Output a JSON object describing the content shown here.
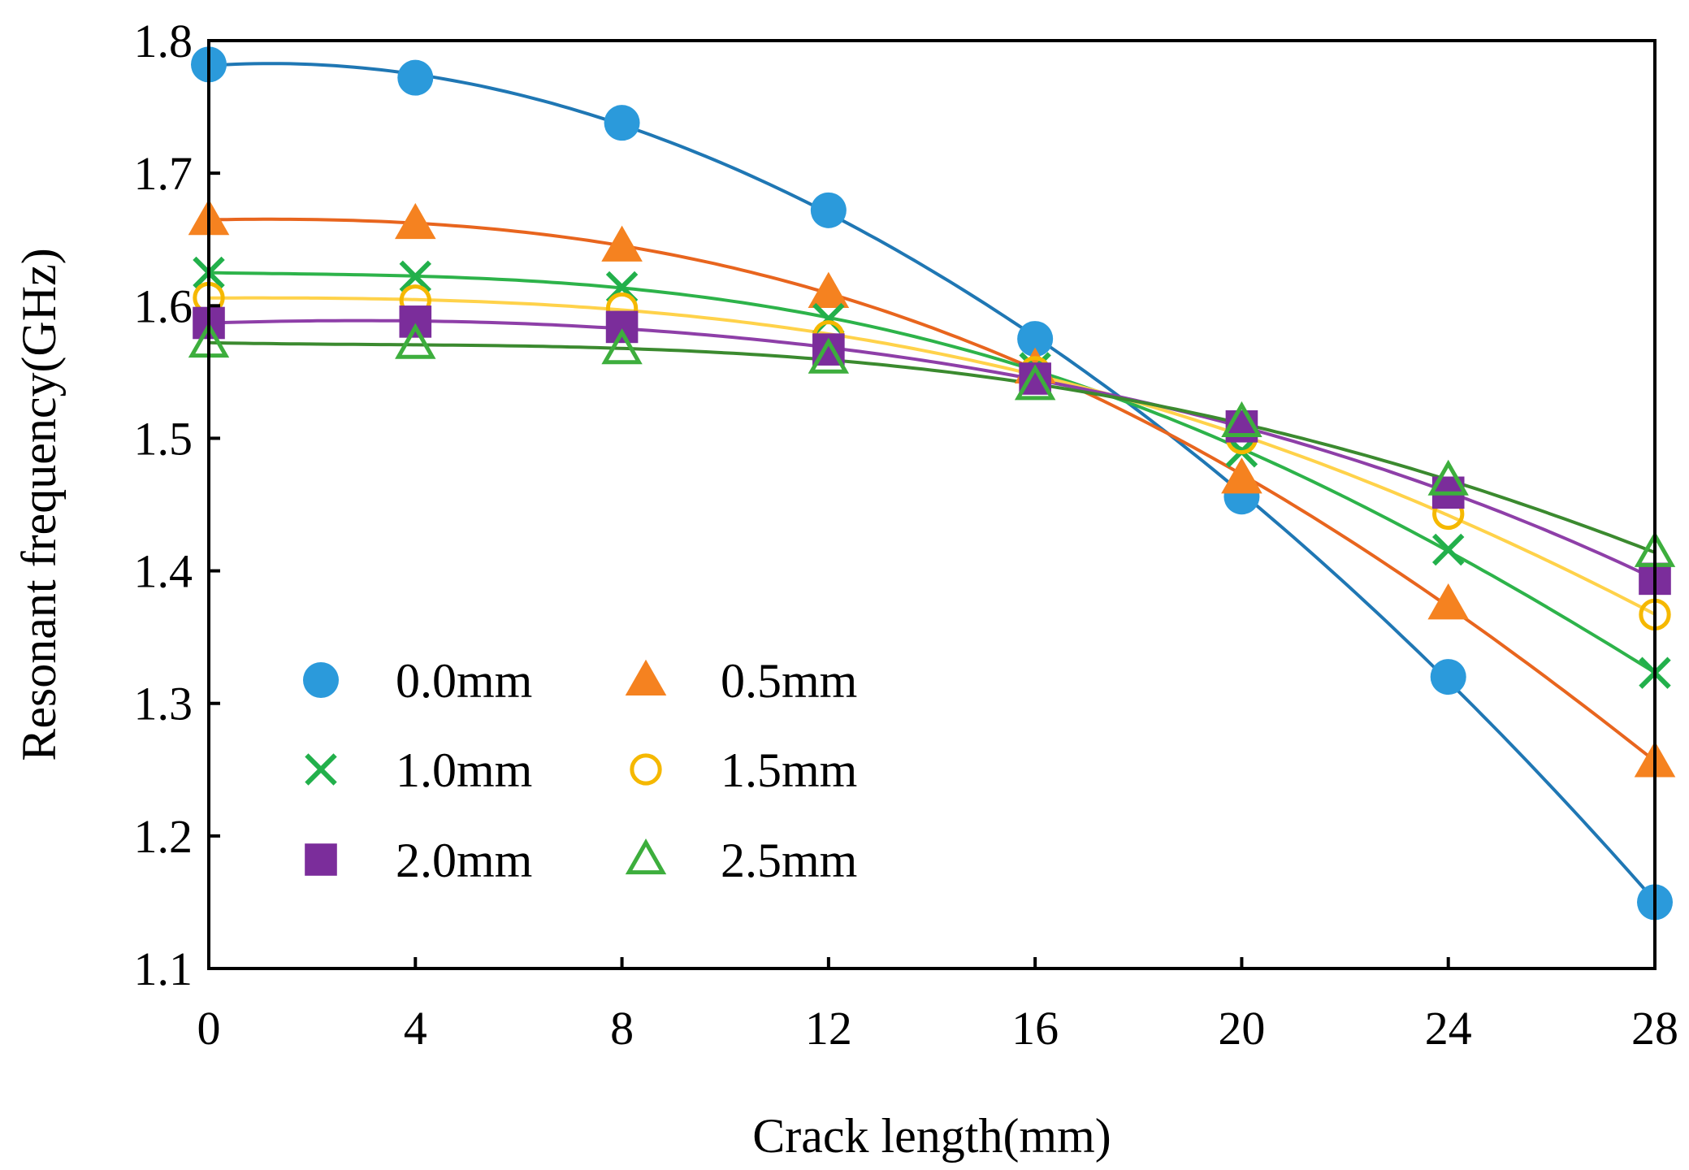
{
  "chart_data": {
    "type": "scatter",
    "title": "",
    "xlabel": "Crack length(mm)",
    "ylabel": "Resonant frequency(GHz)",
    "xlim": [
      0,
      28
    ],
    "ylim": [
      1.1,
      1.8
    ],
    "x_ticks": [
      0,
      4,
      8,
      12,
      16,
      20,
      24,
      28
    ],
    "x_tick_labels": [
      "0",
      "4",
      "8",
      "12",
      "16",
      "20",
      "24",
      "28"
    ],
    "y_ticks": [
      1.1,
      1.2,
      1.3,
      1.4,
      1.5,
      1.6,
      1.7,
      1.8
    ],
    "y_tick_labels": [
      "1.1",
      "1.2",
      "1.3",
      "1.4",
      "1.5",
      "1.6",
      "1.7",
      "1.8"
    ],
    "grid": false,
    "legend_position": "bottom-left",
    "trend_lines": "polynomial fit per series",
    "x": [
      0,
      4,
      8,
      12,
      16,
      20,
      24,
      28
    ],
    "series": [
      {
        "name": "0.0mm",
        "marker": "circle-filled",
        "color": "#2B9ADB",
        "line_color": "#1F77B4",
        "values": [
          1.782,
          1.772,
          1.738,
          1.672,
          1.575,
          1.456,
          1.32,
          1.15
        ]
      },
      {
        "name": "0.5mm",
        "marker": "triangle-filled",
        "color": "#F58220",
        "line_color": "#E8651E",
        "values": [
          1.665,
          1.662,
          1.645,
          1.61,
          1.553,
          1.47,
          1.375,
          1.256
        ]
      },
      {
        "name": "1.0mm",
        "marker": "cross",
        "color": "#22B04B",
        "line_color": "#2DB34A",
        "values": [
          1.625,
          1.622,
          1.614,
          1.59,
          1.553,
          1.49,
          1.416,
          1.323
        ]
      },
      {
        "name": "1.5mm",
        "marker": "circle-open",
        "color": "#F5B800",
        "line_color": "#FFD24A",
        "values": [
          1.606,
          1.604,
          1.598,
          1.577,
          1.55,
          1.5,
          1.443,
          1.367
        ]
      },
      {
        "name": "2.0mm",
        "marker": "square-filled",
        "color": "#7B2D9B",
        "line_color": "#8E3FA8",
        "values": [
          1.587,
          1.588,
          1.584,
          1.567,
          1.545,
          1.509,
          1.459,
          1.394
        ]
      },
      {
        "name": "2.5mm",
        "marker": "triangle-open",
        "color": "#3DAE3D",
        "line_color": "#3B8A2F",
        "values": [
          1.572,
          1.571,
          1.567,
          1.56,
          1.54,
          1.512,
          1.468,
          1.414
        ]
      }
    ]
  }
}
